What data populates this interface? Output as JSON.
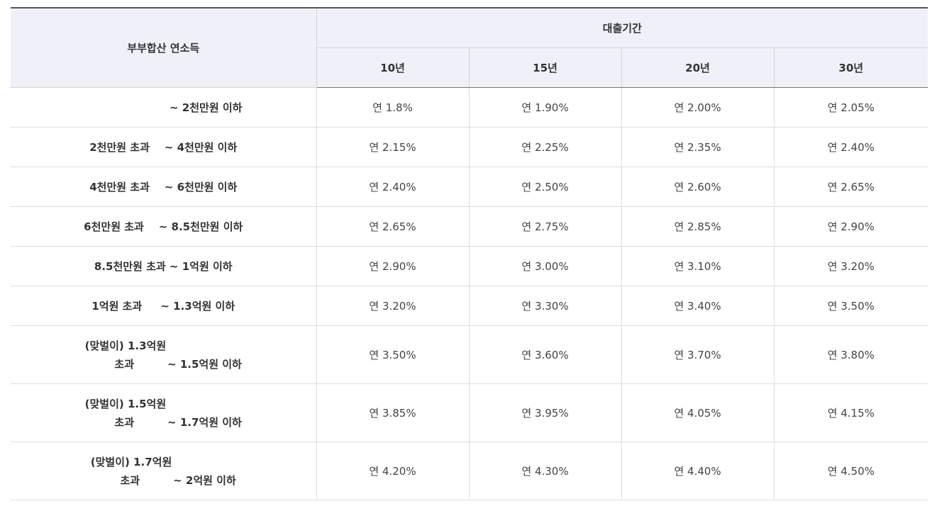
{
  "table": {
    "income_header": "부부합산 연소득",
    "period_header": "대출기간",
    "periods": [
      "10년",
      "15년",
      "20년",
      "30년"
    ],
    "rows": [
      {
        "income": [
          "~ 2천만원 이하"
        ],
        "rates": [
          "연 1.8%",
          "연 1.90%",
          "연 2.00%",
          "연 2.05%"
        ]
      },
      {
        "income": [
          "2천만원 초과    ~ 4천만원 이하"
        ],
        "rates": [
          "연 2.15%",
          "연 2.25%",
          "연 2.35%",
          "연 2.40%"
        ]
      },
      {
        "income": [
          "4천만원 초과    ~ 6천만원 이하"
        ],
        "rates": [
          "연 2.40%",
          "연 2.50%",
          "연 2.60%",
          "연 2.65%"
        ]
      },
      {
        "income": [
          "6천만원 초과    ~ 8.5천만원 이하"
        ],
        "rates": [
          "연 2.65%",
          "연 2.75%",
          "연 2.85%",
          "연 2.90%"
        ]
      },
      {
        "income": [
          "8.5천만원 초과 ~ 1억원 이하"
        ],
        "rates": [
          "연 2.90%",
          "연 3.00%",
          "연 3.10%",
          "연 3.20%"
        ]
      },
      {
        "income": [
          "1억원 초과     ~ 1.3억원 이하"
        ],
        "rates": [
          "연 3.20%",
          "연 3.30%",
          "연 3.40%",
          "연 3.50%"
        ]
      },
      {
        "income": [
          "(맞벌이) 1.3억원",
          "        초과         ~ 1.5억원 이하"
        ],
        "rates": [
          "연 3.50%",
          "연 3.60%",
          "연 3.70%",
          "연 3.80%"
        ]
      },
      {
        "income": [
          "(맞벌이) 1.5억원",
          "        초과         ~ 1.7억원 이하"
        ],
        "rates": [
          "연 3.85%",
          "연 3.95%",
          "연 4.05%",
          "연 4.15%"
        ]
      },
      {
        "income": [
          "(맞벌이) 1.7억원",
          "        초과         ~ 2억원 이하"
        ],
        "rates": [
          "연 4.20%",
          "연 4.30%",
          "연 4.40%",
          "연 4.50%"
        ]
      }
    ]
  }
}
